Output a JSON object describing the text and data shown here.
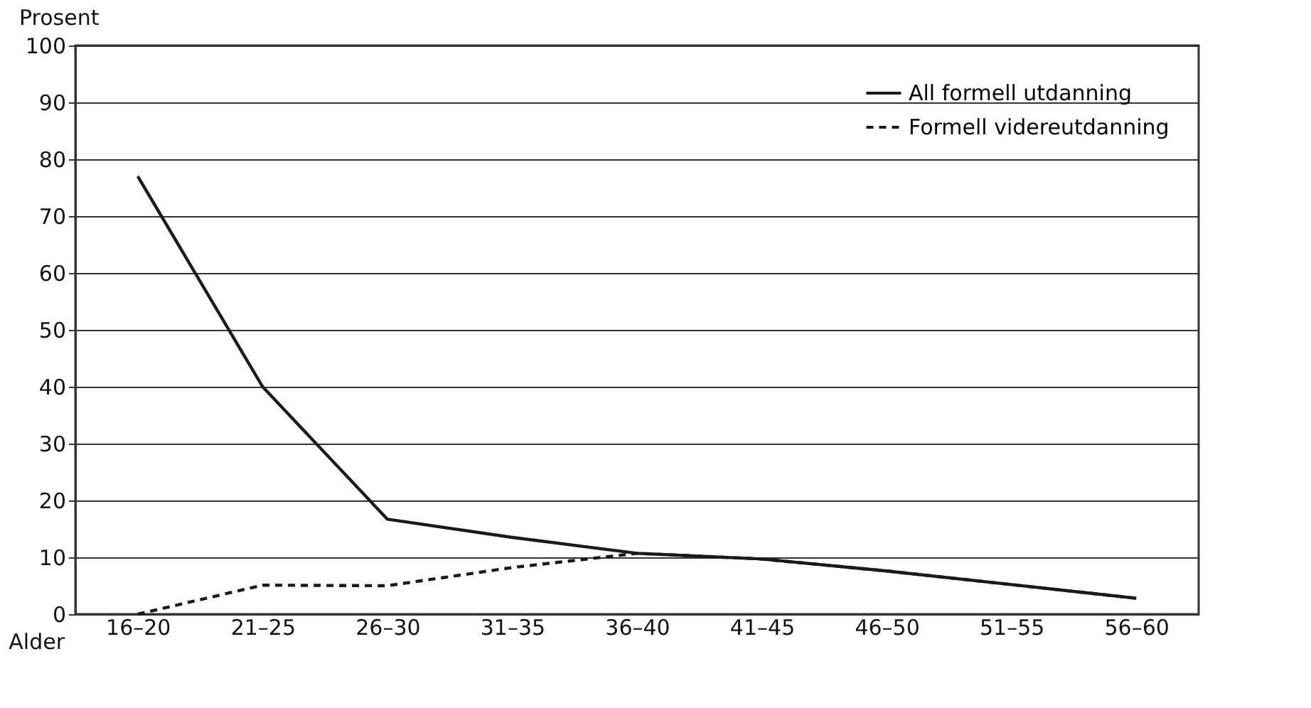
{
  "chart_data": {
    "type": "line",
    "xlabel": "Alder",
    "ylabel": "Prosent",
    "categories": [
      "16–20",
      "21–25",
      "26–30",
      "31–35",
      "36–40",
      "41–45",
      "46–50",
      "51–55",
      "56–60"
    ],
    "series": [
      {
        "name": "All formell utdanning",
        "color": "#1a1a1a",
        "line_style": "solid",
        "values": [
          77,
          40,
          16.7,
          13.5,
          10.7,
          9.7,
          7.6,
          5.2,
          2.8
        ]
      },
      {
        "name": "Formell videreutdanning",
        "color": "#1a1a1a",
        "line_style": "dashed",
        "values": [
          0,
          5.1,
          5,
          8.2,
          10.7,
          9.7,
          7.6,
          5.2,
          2.8
        ]
      }
    ],
    "ylim": [
      0,
      100
    ],
    "yticks": [
      0,
      10,
      20,
      30,
      40,
      50,
      60,
      70,
      80,
      90,
      100
    ],
    "grid": "y",
    "legend": "top right",
    "marker": "none"
  }
}
